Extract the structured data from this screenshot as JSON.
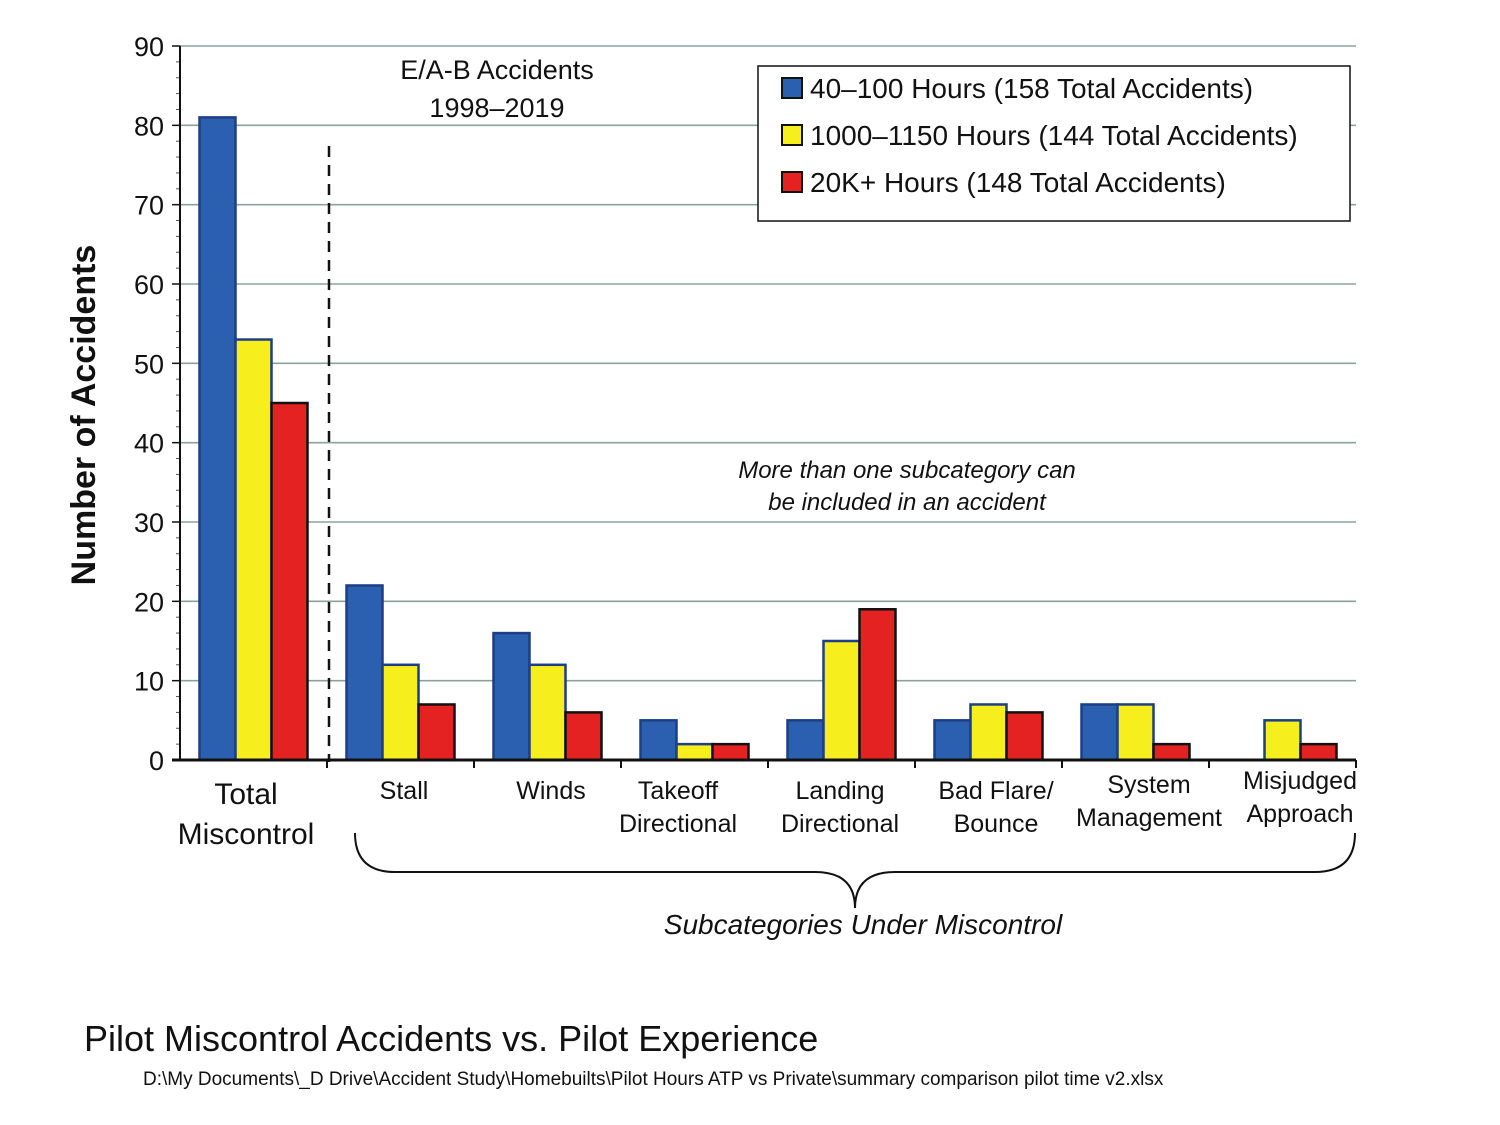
{
  "chart_data": {
    "type": "bar",
    "title": "Pilot Miscontrol Accidents vs. Pilot Experience",
    "source_path": "D:\\My Documents\\_D Drive\\Accident Study\\Homebuilts\\Pilot Hours ATP vs Private\\summary comparison pilot time v2.xlsx",
    "ylabel": "Number of Accidents",
    "ylim": [
      0,
      90
    ],
    "yticks": [
      0,
      10,
      20,
      30,
      40,
      50,
      60,
      70,
      80,
      90
    ],
    "grid": true,
    "legend_position": "top-right",
    "categories": [
      {
        "lines": [
          "Total",
          "Miscontrol"
        ]
      },
      {
        "lines": [
          "Stall"
        ]
      },
      {
        "lines": [
          "Winds"
        ]
      },
      {
        "lines": [
          "Takeoff",
          "Directional"
        ]
      },
      {
        "lines": [
          "Landing",
          "Directional"
        ]
      },
      {
        "lines": [
          "Bad Flare/",
          "Bounce"
        ]
      },
      {
        "lines": [
          "System",
          "Management"
        ]
      },
      {
        "lines": [
          "Misjudged",
          "Approach"
        ]
      }
    ],
    "series": [
      {
        "name": "40–100 Hours (158 Total Accidents)",
        "color": "#2b5fb0",
        "values": [
          81,
          22,
          16,
          5,
          5,
          5,
          7,
          0
        ]
      },
      {
        "name": "1000–1150 Hours (144 Total Accidents)",
        "color": "#f7ee1e",
        "values": [
          53,
          12,
          12,
          2,
          15,
          7,
          7,
          5
        ]
      },
      {
        "name": "20K+ Hours (148 Total Accidents)",
        "color": "#e52222",
        "values": [
          45,
          7,
          6,
          2,
          19,
          6,
          2,
          2
        ]
      }
    ],
    "annotations": {
      "dataset_lines": [
        "E/A-B Accidents",
        "1998–2019"
      ],
      "note_lines": [
        "More than one subcategory can",
        "be included in an accident"
      ],
      "brace_label": "Subcategories Under Miscontrol"
    }
  }
}
